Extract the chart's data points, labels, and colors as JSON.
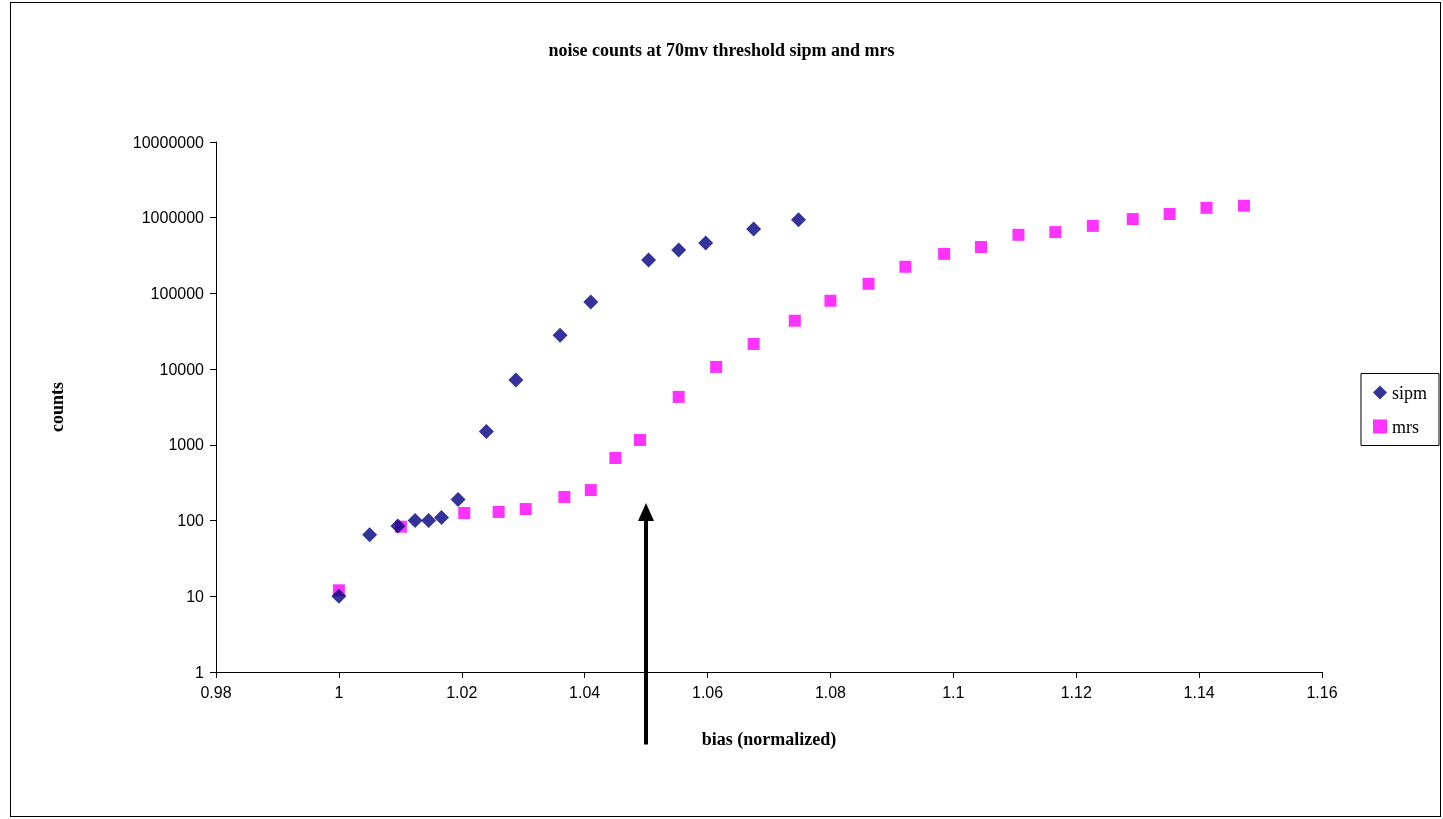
{
  "chart_data": {
    "type": "scatter",
    "title": "noise counts at 70mv threshold sipm and mrs",
    "xlabel": "bias (normalized)",
    "ylabel": "counts",
    "series": [
      {
        "name": "sipm",
        "color": "#000080",
        "marker": "diamond",
        "x": [
          1.0,
          1.005,
          1.0096,
          1.0124,
          1.0146,
          1.0167,
          1.0194,
          1.024,
          1.0288,
          1.036,
          1.041,
          1.0504,
          1.0553,
          1.0597,
          1.0675,
          1.0748
        ],
        "values": [
          10,
          65,
          85,
          100,
          100,
          110,
          190,
          1500,
          7200,
          28000,
          77000,
          277000,
          375000,
          464000,
          710000,
          940000
        ]
      },
      {
        "name": "mrs",
        "color": "#ff00ff",
        "marker": "square",
        "x": [
          1.0,
          1.0101,
          1.0204,
          1.026,
          1.0304,
          1.0367,
          1.041,
          1.045,
          1.049,
          1.0553,
          1.0614,
          1.0675,
          1.0742,
          1.08,
          1.0862,
          1.0922,
          1.0985,
          1.1045,
          1.1106,
          1.1166,
          1.1227,
          1.1292,
          1.1352,
          1.1412,
          1.1473
        ],
        "values": [
          12,
          83,
          126,
          130,
          142,
          205,
          253,
          670,
          1160,
          4300,
          10700,
          21500,
          43600,
          80000,
          134000,
          225000,
          333000,
          410000,
          595000,
          645000,
          780000,
          960000,
          1120000,
          1350000,
          1440000
        ]
      }
    ],
    "xlim": [
      0.98,
      1.16
    ],
    "xticks": [
      0.98,
      1,
      1.02,
      1.04,
      1.06,
      1.08,
      1.1,
      1.12,
      1.14,
      1.16
    ],
    "ylim": [
      1,
      10000000
    ],
    "yticks": [
      1,
      10,
      100,
      1000,
      10000,
      100000,
      1000000,
      10000000
    ],
    "log": "y",
    "grid": false,
    "legend": "right"
  }
}
